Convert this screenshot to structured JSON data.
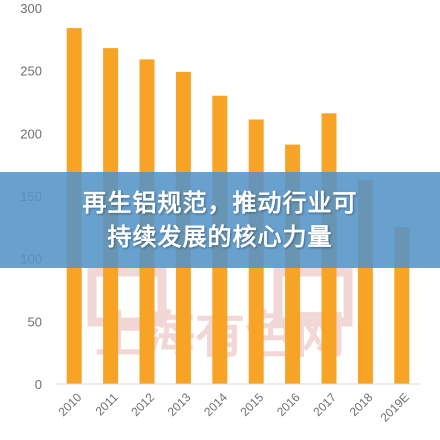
{
  "chart_data": {
    "type": "bar",
    "categories": [
      "2010",
      "2011",
      "2012",
      "2013",
      "2014",
      "2015",
      "2016",
      "2017",
      "2018",
      "2019E"
    ],
    "values": [
      284,
      268,
      259,
      249,
      230,
      211,
      191,
      216,
      163,
      125
    ],
    "ylim": [
      0,
      300
    ],
    "yticks": [
      0,
      50,
      100,
      150,
      200,
      250,
      300
    ],
    "ytick_labels": [
      "0",
      "50",
      "100",
      "150",
      "200",
      "250",
      "300"
    ],
    "title": "",
    "xlabel": "",
    "ylabel": "",
    "grid": false,
    "legend": "none",
    "bar_color": "#f7a325"
  },
  "banner": {
    "line1": "再生铝规范，推动行业可",
    "line2": "持续发展的核心力量",
    "background": "#5393c7",
    "text_color": "#ffffff"
  },
  "watermark": {
    "text": "上海有色网",
    "color": "#e3a7a7"
  }
}
